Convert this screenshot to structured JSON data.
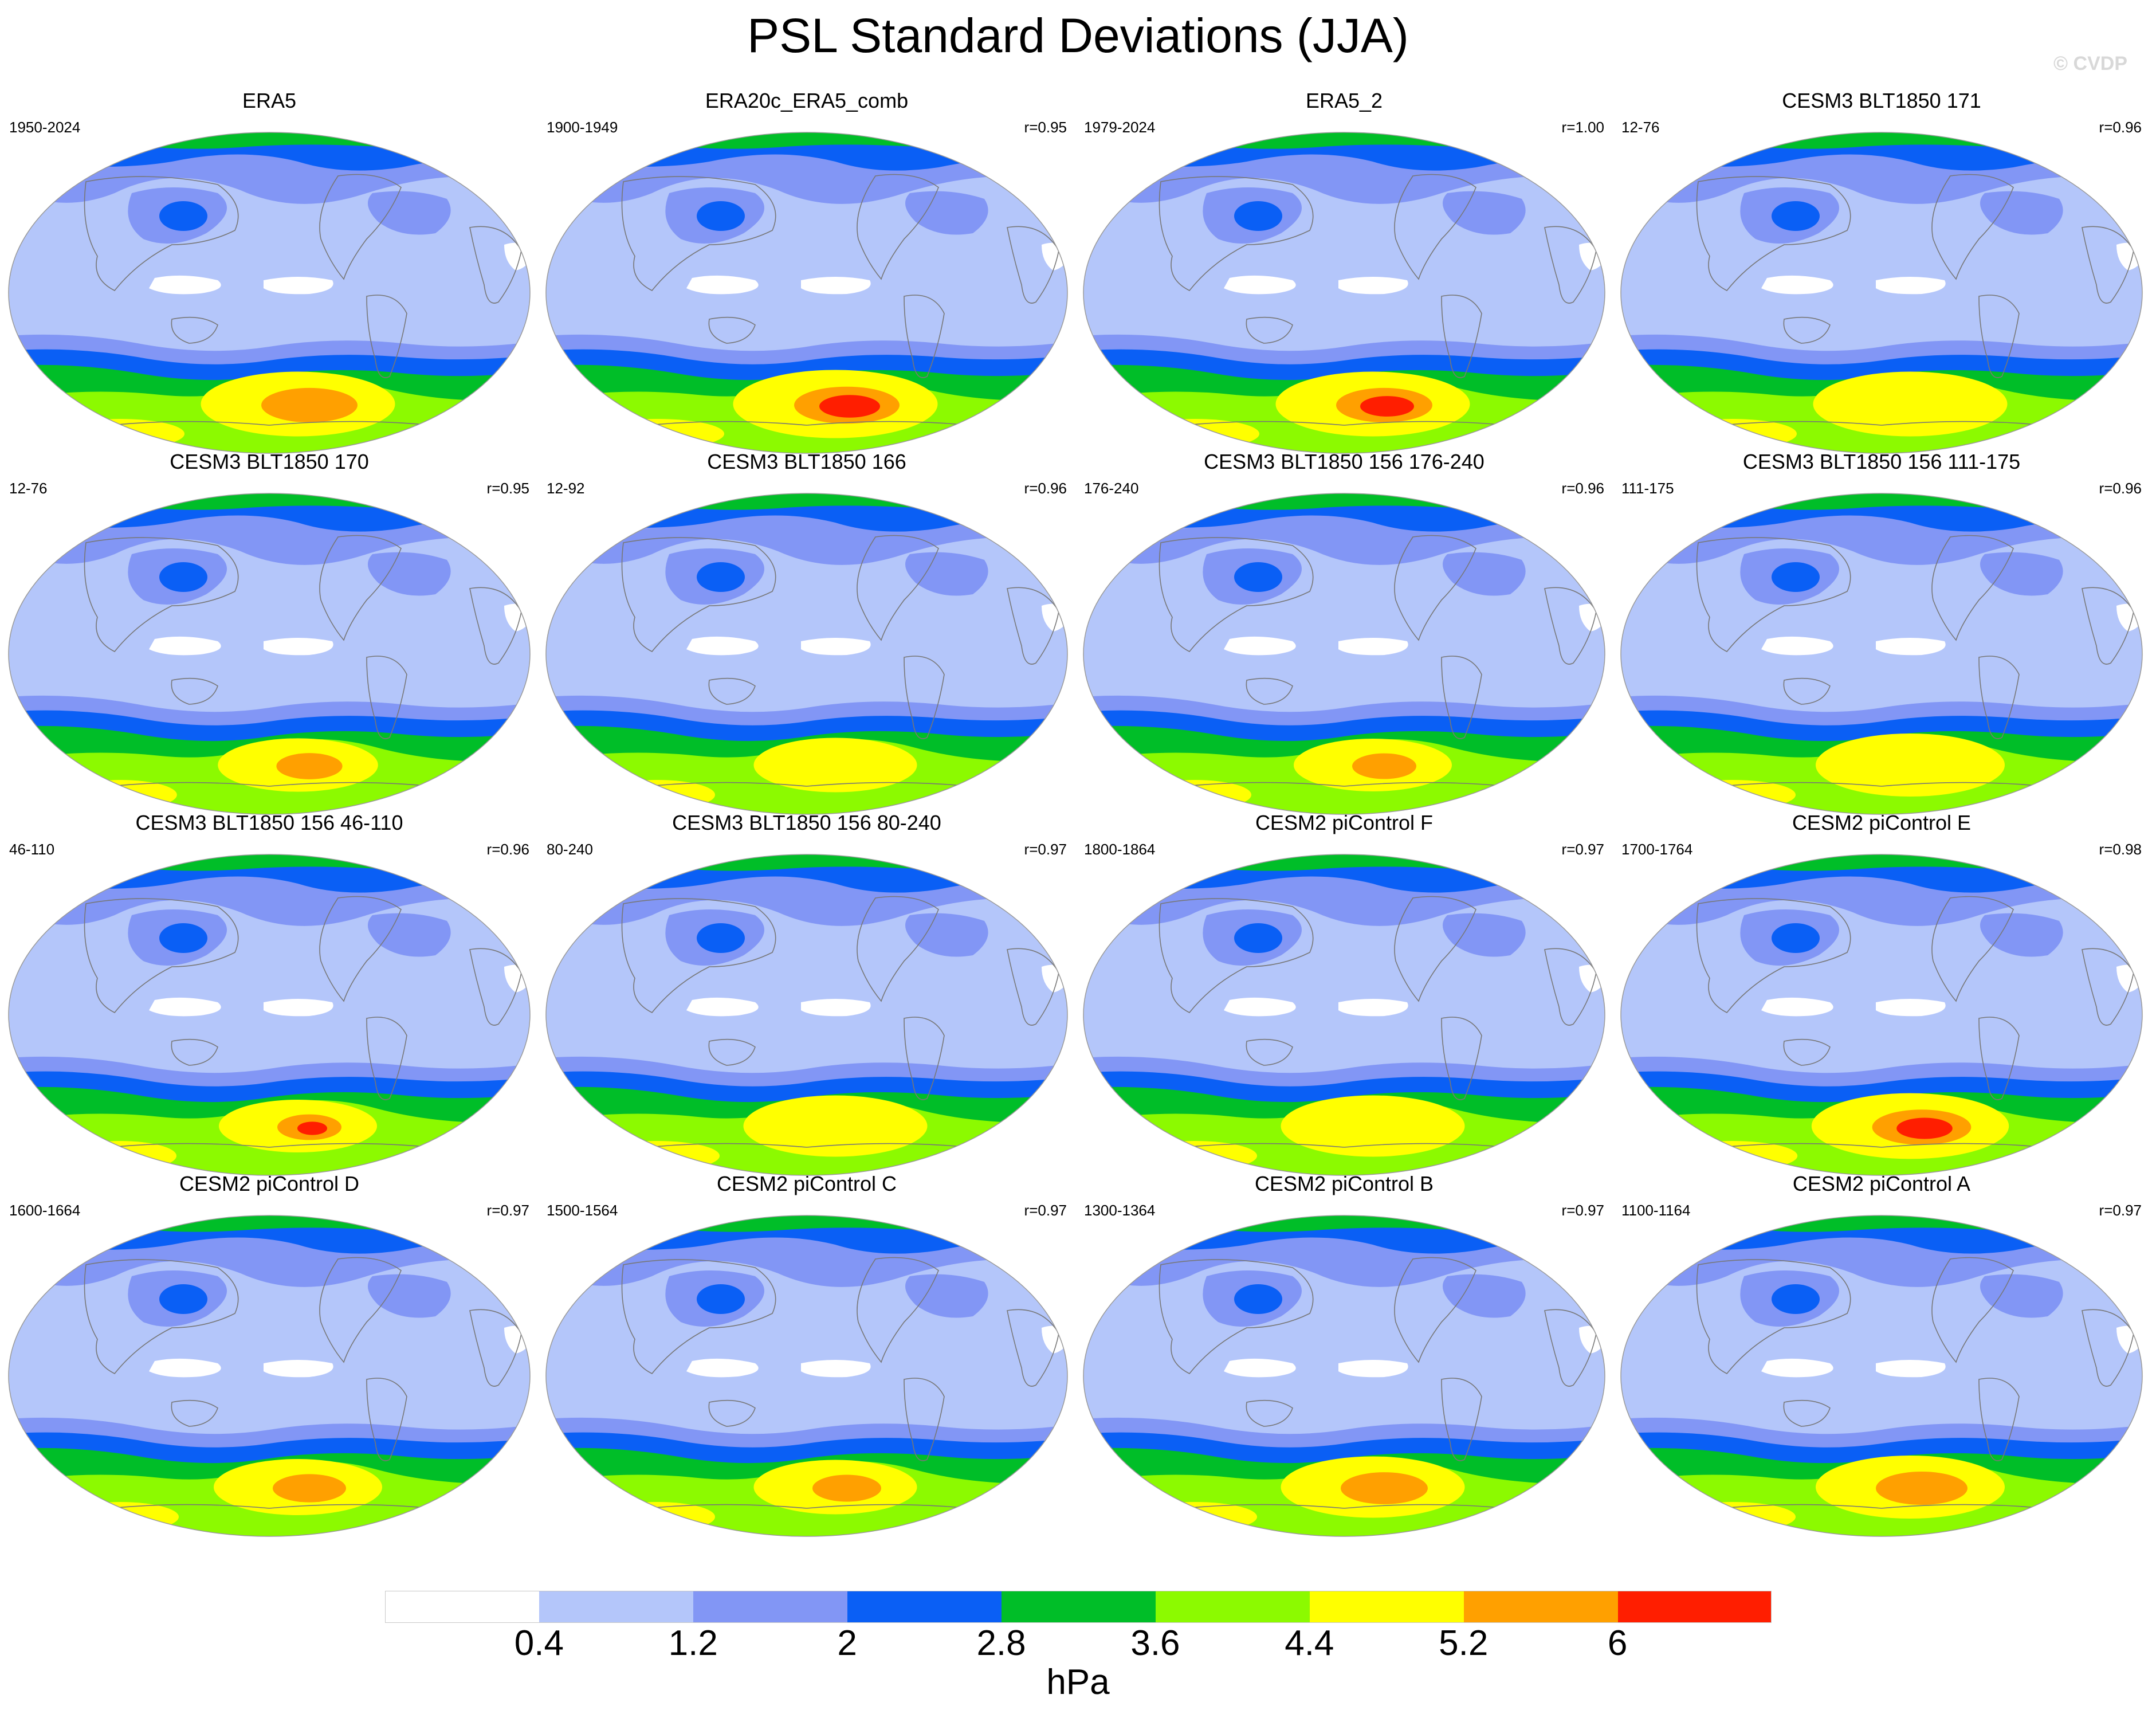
{
  "title": "PSL Standard Deviations (JJA)",
  "credit": "© CVDP",
  "colors": {
    "levels": [
      "#ffffff",
      "#b4c6fa",
      "#8296f5",
      "#0a5ff5",
      "#00be28",
      "#8cfa00",
      "#ffff00",
      "#ffa000",
      "#ff1e00"
    ],
    "coast": "#777777",
    "rim": "#9a9a9a"
  },
  "colorbar": {
    "labels": [
      "0.4",
      "1.2",
      "2",
      "2.8",
      "3.6",
      "4.4",
      "5.2",
      "6"
    ],
    "unit": "hPa"
  },
  "panels": [
    {
      "title": "ERA5",
      "years": "1950-2024",
      "corr": "",
      "peak": 7,
      "ant": 0.55
    },
    {
      "title": "ERA20c_ERA5_comb",
      "years": "1900-1949",
      "corr": "r=0.95",
      "peak": 8,
      "ant": 0.65
    },
    {
      "title": "ERA5_2",
      "years": "1979-2024",
      "corr": "r=1.00",
      "peak": 8,
      "ant": 0.55
    },
    {
      "title": "CESM3 BLT1850 171",
      "years": "12-76",
      "corr": "r=0.96",
      "peak": 6,
      "ant": 0.55
    },
    {
      "title": "CESM3 BLT1850 170",
      "years": "12-76",
      "corr": "r=0.95",
      "peak": 7,
      "ant": 0.22
    },
    {
      "title": "CESM3 BLT1850 166",
      "years": "12-92",
      "corr": "r=0.96",
      "peak": 6,
      "ant": 0.25
    },
    {
      "title": "CESM3 BLT1850 156 176-240",
      "years": "176-240",
      "corr": "r=0.96",
      "peak": 7,
      "ant": 0.2
    },
    {
      "title": "CESM3 BLT1850 156 111-175",
      "years": "111-175",
      "corr": "r=0.96",
      "peak": 6,
      "ant": 0.5
    },
    {
      "title": "CESM3 BLT1850 156 46-110",
      "years": "46-110",
      "corr": "r=0.96",
      "peak": 8,
      "ant": 0.2
    },
    {
      "title": "CESM3 BLT1850 156 80-240",
      "years": "80-240",
      "corr": "r=0.97",
      "peak": 6,
      "ant": 0.45
    },
    {
      "title": "CESM2 piControl F",
      "years": "1800-1864",
      "corr": "r=0.97",
      "peak": 6,
      "ant": 0.45
    },
    {
      "title": "CESM2 piControl E",
      "years": "1700-1764",
      "corr": "r=0.98",
      "peak": 8,
      "ant": 0.58
    },
    {
      "title": "CESM2 piControl D",
      "years": "1600-1664",
      "corr": "r=0.97",
      "peak": 7,
      "ant": 0.3
    },
    {
      "title": "CESM2 piControl C",
      "years": "1500-1564",
      "corr": "r=0.97",
      "peak": 7,
      "ant": 0.25
    },
    {
      "title": "CESM2 piControl B",
      "years": "1300-1364",
      "corr": "r=0.97",
      "peak": 7,
      "ant": 0.45
    },
    {
      "title": "CESM2 piControl A",
      "years": "1100-1164",
      "corr": "r=0.97",
      "peak": 7,
      "ant": 0.5
    }
  ]
}
